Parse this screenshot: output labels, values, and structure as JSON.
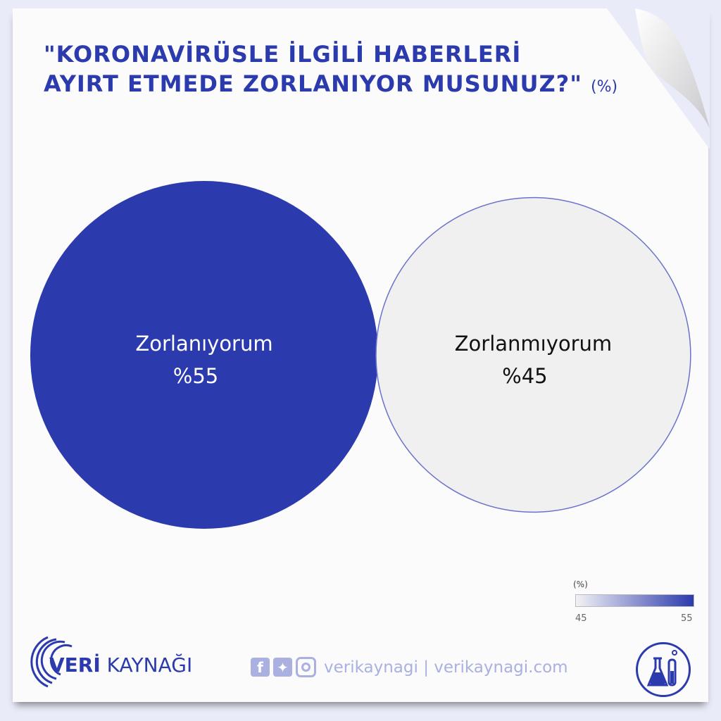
{
  "title_line1": "\"KORONAVİRÜSLE İLGİLİ HABERLERİ",
  "title_line2": "AYIRT ETMEDE ZORLANIYOR MUSUNUZ?\"",
  "title_unit": "(%)",
  "chart_data": {
    "type": "bubble",
    "categories": [
      "Zorlanıyorum",
      "Zorlanmıyorum"
    ],
    "values": [
      55,
      45
    ],
    "labels": [
      "%55",
      "%45"
    ],
    "colors": [
      "#2b3aad",
      "#f0f0f0"
    ],
    "color_scale": {
      "title": "(%)",
      "min": 45,
      "max": 55,
      "min_label": "45",
      "max_label": "55",
      "min_color": "#f2f2f5",
      "max_color": "#2b3aad"
    }
  },
  "footer": {
    "brand_bold": "VERİ",
    "brand_rest": " KAYNAĞI",
    "social_handle": "verikaynagi | verikaynagi.com",
    "icons": [
      "facebook-icon",
      "twitter-icon",
      "instagram-icon",
      "lab-flask-icon"
    ]
  }
}
